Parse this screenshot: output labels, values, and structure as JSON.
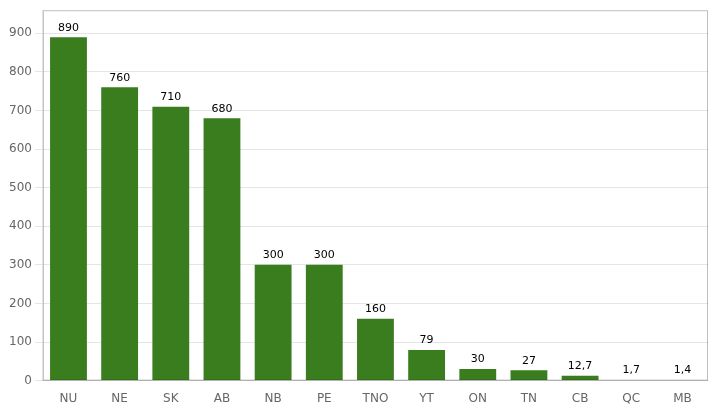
{
  "chart_data": {
    "type": "bar",
    "categories": [
      "NU",
      "NE",
      "SK",
      "AB",
      "NB",
      "PE",
      "TNO",
      "YT",
      "ON",
      "TN",
      "CB",
      "QC",
      "MB"
    ],
    "values": [
      890,
      760,
      710,
      680,
      300,
      300,
      160,
      79,
      30,
      27,
      12.7,
      1.7,
      1.4
    ],
    "value_labels": [
      "890",
      "760",
      "710",
      "680",
      "300",
      "300",
      "160",
      "79",
      "30",
      "27",
      "12,7",
      "1,7",
      "1,4"
    ],
    "data_labels": true,
    "color": "#3a7d1e",
    "ylim": [
      0,
      960
    ],
    "yticks": [
      0,
      100,
      200,
      300,
      400,
      500,
      600,
      700,
      800,
      900
    ],
    "grid": true
  }
}
